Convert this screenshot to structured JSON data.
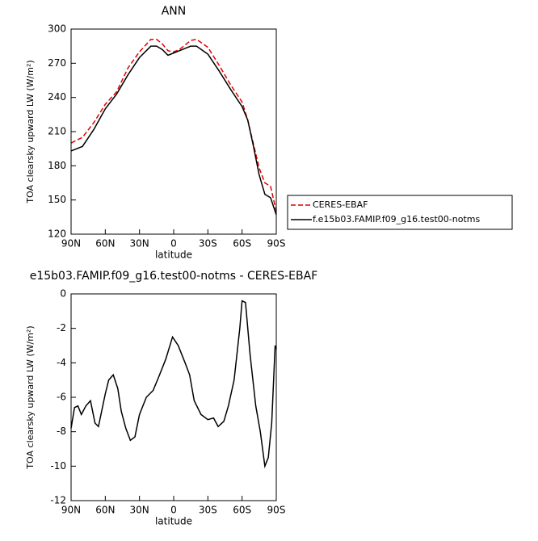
{
  "chart_data": [
    {
      "type": "line",
      "title": "ANN",
      "x_label": "latitude",
      "y_label": "TOA clearsky upward LW (W/m²)",
      "x": [
        90,
        80,
        70,
        60,
        50,
        40,
        30,
        20,
        15,
        10,
        5,
        0,
        -5,
        -10,
        -15,
        -20,
        -30,
        -40,
        -50,
        -60,
        -65,
        -70,
        -75,
        -80,
        -85,
        -90
      ],
      "series": [
        {
          "name": "CERES-EBAF",
          "color": "#e00000",
          "dash": true,
          "values": [
            200,
            205,
            218,
            234,
            245,
            266,
            280,
            291,
            291,
            287,
            281,
            280,
            282,
            286,
            290,
            291,
            284,
            268,
            251,
            236,
            220,
            199,
            178,
            165,
            162,
            140
          ]
        },
        {
          "name": "f.e15b03.FAMIP.f09_g16.test00-notms",
          "color": "#000000",
          "dash": false,
          "values": [
            193,
            197,
            212,
            230,
            243,
            260,
            275,
            285,
            285,
            282,
            277,
            279,
            281,
            283,
            285,
            285,
            278,
            263,
            247,
            232,
            220,
            197,
            172,
            155,
            152,
            137
          ]
        }
      ],
      "xlim": [
        90,
        -90
      ],
      "xticks": [
        {
          "value": 90,
          "label": "90N"
        },
        {
          "value": 60,
          "label": "60N"
        },
        {
          "value": 30,
          "label": "30N"
        },
        0,
        {
          "value": -30,
          "label": "30S"
        },
        {
          "value": -60,
          "label": "60S"
        },
        {
          "value": -90,
          "label": "90S"
        }
      ],
      "ylim": [
        120,
        300
      ],
      "yticks": [
        120,
        150,
        180,
        210,
        240,
        270,
        300
      ],
      "legend": "right"
    },
    {
      "type": "line",
      "title": "e15b03.FAMIP.f09_g16.test00-notms - CERES-EBAF",
      "x_label": "latitude",
      "y_label": "TOA clearsky upward LW (W/m²)",
      "x": [
        90,
        87,
        84,
        81,
        77,
        73,
        69,
        66,
        60,
        57,
        53,
        49,
        46,
        42,
        38,
        34,
        30,
        24,
        18,
        13,
        7,
        1,
        -4,
        -10,
        -14,
        -18,
        -24,
        -30,
        -35,
        -39,
        -44,
        -48,
        -53,
        -58,
        -60,
        -63,
        -67,
        -72,
        -76,
        -80,
        -83,
        -86,
        -89,
        -90
      ],
      "values": [
        -7.8,
        -6.6,
        -6.5,
        -7.0,
        -6.5,
        -6.2,
        -7.5,
        -7.7,
        -5.8,
        -5.0,
        -4.7,
        -5.5,
        -6.8,
        -7.8,
        -8.5,
        -8.3,
        -7.0,
        -6.0,
        -5.6,
        -4.8,
        -3.8,
        -2.5,
        -3.0,
        -4.0,
        -4.7,
        -6.2,
        -7.0,
        -7.3,
        -7.2,
        -7.7,
        -7.4,
        -6.5,
        -5.0,
        -2.0,
        -0.4,
        -0.5,
        -3.5,
        -6.5,
        -8.0,
        -10.0,
        -9.5,
        -7.5,
        -3.0,
        -3.2
      ],
      "color": "#000000",
      "xlim": [
        90,
        -90
      ],
      "xticks": [
        {
          "value": 90,
          "label": "90N"
        },
        {
          "value": 60,
          "label": "60N"
        },
        {
          "value": 30,
          "label": "30N"
        },
        0,
        {
          "value": -30,
          "label": "30S"
        },
        {
          "value": -60,
          "label": "60S"
        },
        {
          "value": -90,
          "label": "90S"
        }
      ],
      "ylim": [
        -12,
        0
      ],
      "yticks": [
        -12,
        -10,
        -8,
        -6,
        -4,
        -2,
        0
      ]
    }
  ]
}
